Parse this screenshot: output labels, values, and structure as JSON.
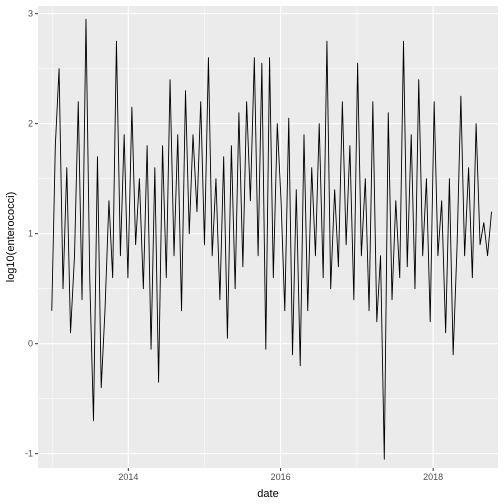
{
  "chart_data": {
    "type": "line",
    "title": "",
    "xlabel": "date",
    "ylabel": "log10(enterococci)",
    "x_range": [
      "2012-10-25",
      "2018-11-08"
    ],
    "ylim": [
      -1.13,
      3.07
    ],
    "grid": true,
    "legend": "none",
    "colors": {
      "panel": "#ebebeb",
      "grid": "#ffffff",
      "line": "#000000"
    },
    "x_ticks": [
      {
        "value": "2014-01-01",
        "label": "2014"
      },
      {
        "value": "2016-01-01",
        "label": "2016"
      },
      {
        "value": "2018-01-01",
        "label": "2018"
      }
    ],
    "y_ticks": [
      -1,
      0,
      1,
      2,
      3
    ],
    "series": [
      {
        "x": [
          "2012-12-30",
          "2013-01-16",
          "2013-02-03",
          "2013-02-22",
          "2013-03-12",
          "2013-03-30",
          "2013-04-18",
          "2013-05-06",
          "2013-05-24",
          "2013-06-12",
          "2013-06-30",
          "2013-07-18",
          "2013-08-06",
          "2013-08-24",
          "2013-09-11",
          "2013-09-30",
          "2013-10-18",
          "2013-11-05",
          "2013-11-24",
          "2013-12-12",
          "2013-12-30",
          "2014-01-18",
          "2014-02-05",
          "2014-02-23",
          "2014-03-14",
          "2014-04-01",
          "2014-04-20",
          "2014-05-08",
          "2014-05-26",
          "2014-06-14",
          "2014-07-02",
          "2014-07-20",
          "2014-08-08",
          "2014-08-26",
          "2014-09-13",
          "2014-10-02",
          "2014-10-20",
          "2014-11-07",
          "2014-11-26",
          "2014-12-14",
          "2015-01-01",
          "2015-01-20",
          "2015-02-07",
          "2015-02-25",
          "2015-03-16",
          "2015-04-03",
          "2015-04-21",
          "2015-05-10",
          "2015-05-28",
          "2015-06-15",
          "2015-07-04",
          "2015-07-22",
          "2015-08-09",
          "2015-08-28",
          "2015-09-15",
          "2015-10-03",
          "2015-10-22",
          "2015-11-09",
          "2015-11-27",
          "2015-12-16",
          "2016-01-03",
          "2016-01-21",
          "2016-02-09",
          "2016-02-27",
          "2016-03-16",
          "2016-04-04",
          "2016-04-22",
          "2016-05-10",
          "2016-05-29",
          "2016-06-16",
          "2016-07-04",
          "2016-07-23",
          "2016-08-10",
          "2016-08-28",
          "2016-09-16",
          "2016-10-04",
          "2016-10-23",
          "2016-11-10",
          "2016-11-28",
          "2016-12-17",
          "2017-01-04",
          "2017-01-22",
          "2017-02-10",
          "2017-02-28",
          "2017-03-18",
          "2017-04-06",
          "2017-04-24",
          "2017-05-12",
          "2017-05-31",
          "2017-06-18",
          "2017-07-06",
          "2017-07-25",
          "2017-08-12",
          "2017-08-30",
          "2017-09-18",
          "2017-10-06",
          "2017-10-24",
          "2017-11-12",
          "2017-11-30",
          "2017-12-18",
          "2018-01-06",
          "2018-01-24",
          "2018-02-11",
          "2018-03-02",
          "2018-03-20",
          "2018-04-07",
          "2018-04-26",
          "2018-05-14",
          "2018-06-01",
          "2018-06-20",
          "2018-07-08",
          "2018-07-26",
          "2018-08-14",
          "2018-09-01",
          "2018-09-19",
          "2018-10-08"
        ],
        "y": [
          0.3,
          1.8,
          2.5,
          0.5,
          1.6,
          0.1,
          0.8,
          2.2,
          0.4,
          2.95,
          0.6,
          -0.7,
          1.7,
          -0.4,
          0.3,
          1.3,
          0.6,
          2.75,
          0.8,
          1.9,
          0.6,
          2.15,
          0.9,
          1.5,
          0.5,
          1.8,
          -0.05,
          1.6,
          -0.35,
          1.8,
          0.6,
          2.4,
          0.8,
          1.9,
          0.3,
          2.3,
          1.0,
          1.9,
          1.2,
          2.2,
          0.9,
          2.6,
          0.8,
          1.5,
          0.4,
          1.7,
          0.05,
          1.8,
          0.5,
          2.1,
          0.7,
          2.2,
          1.3,
          2.6,
          0.8,
          2.55,
          -0.05,
          2.6,
          0.6,
          2.0,
          1.3,
          0.3,
          2.05,
          -0.1,
          1.4,
          -0.2,
          1.9,
          0.3,
          1.6,
          0.8,
          2.0,
          0.6,
          2.75,
          0.5,
          1.4,
          0.7,
          2.2,
          0.9,
          1.8,
          0.4,
          2.55,
          0.8,
          1.5,
          0.3,
          2.2,
          0.2,
          0.8,
          -1.05,
          2.1,
          0.4,
          1.3,
          0.6,
          2.75,
          0.7,
          1.9,
          0.5,
          2.4,
          0.8,
          1.5,
          0.2,
          2.2,
          0.8,
          1.3,
          0.1,
          1.5,
          -0.1,
          0.9,
          2.25,
          0.8,
          1.6,
          0.6,
          2.0,
          0.9,
          1.1,
          0.8,
          1.2
        ]
      }
    ]
  }
}
